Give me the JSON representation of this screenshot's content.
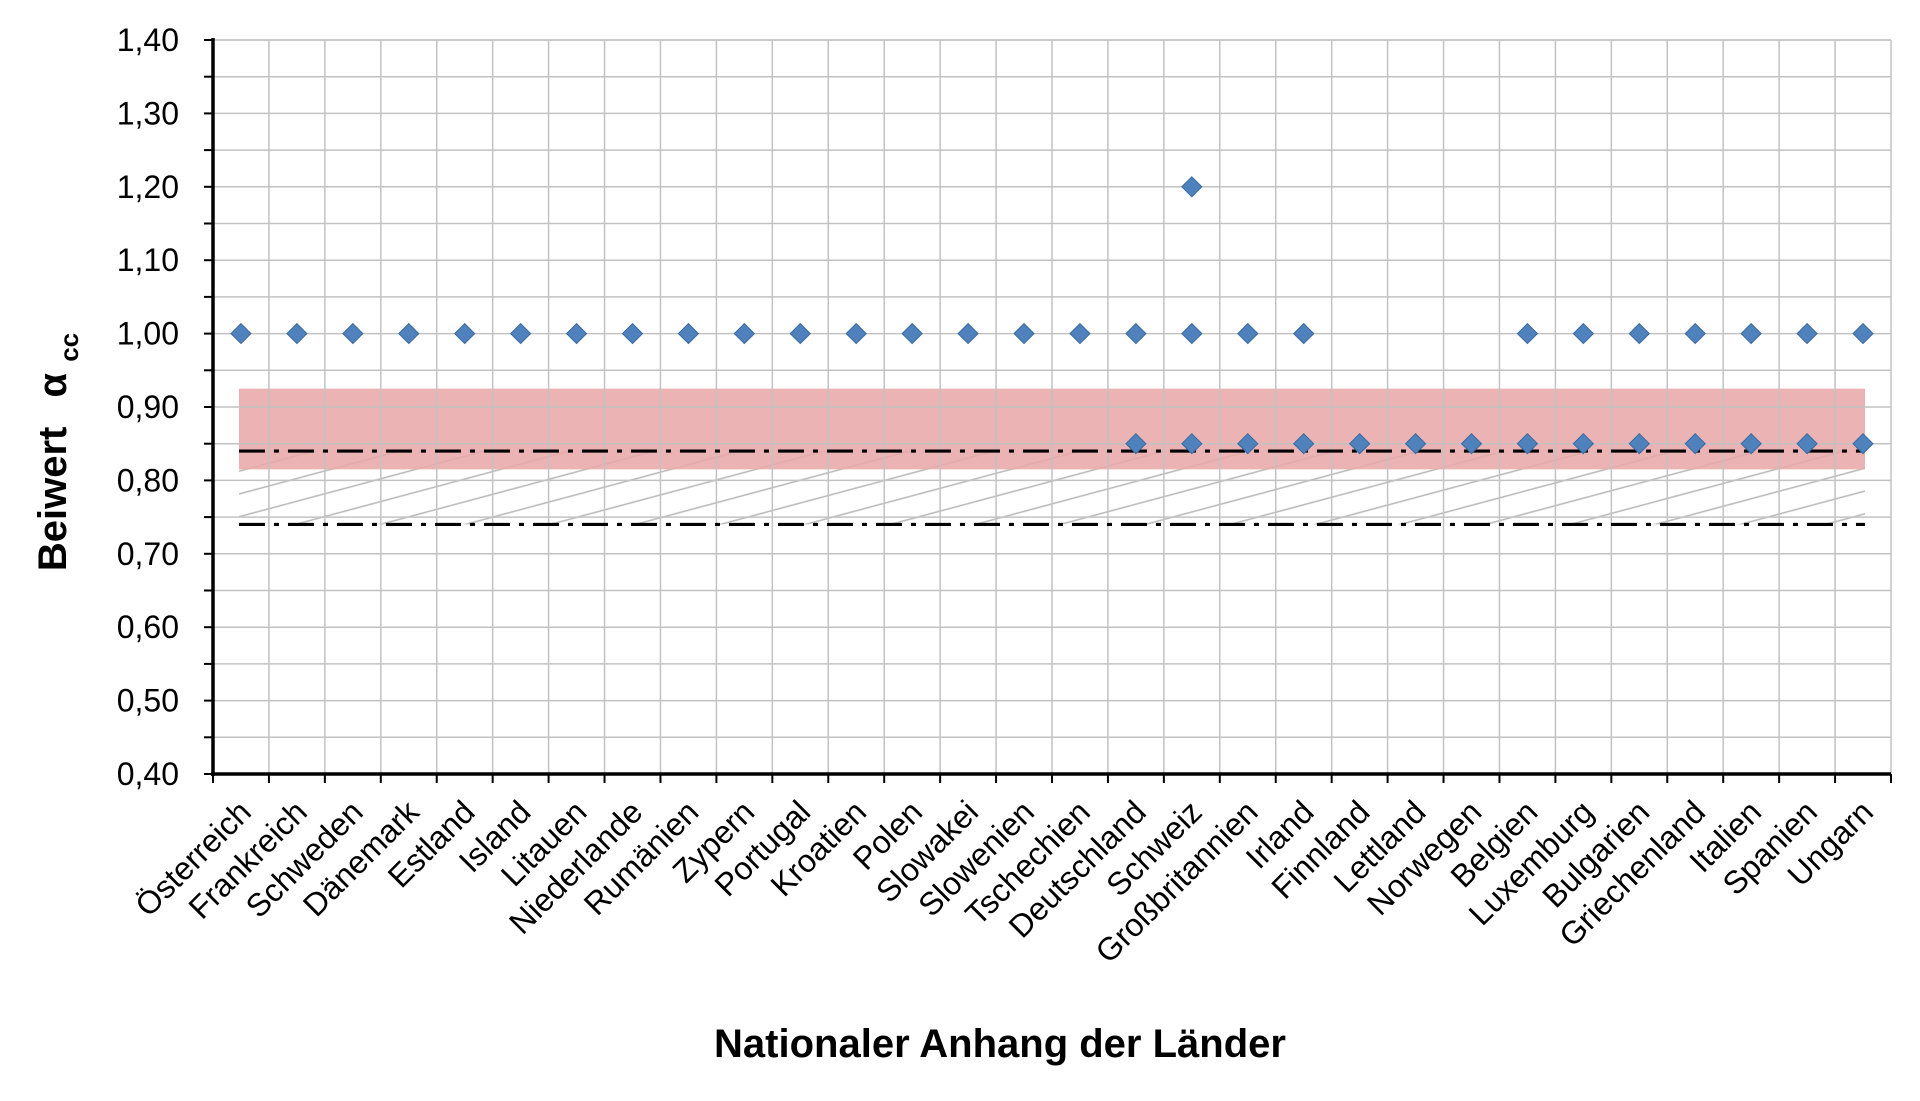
{
  "chart_data": {
    "type": "scatter",
    "title": "",
    "xlabel": "Nationaler Anhang der Länder",
    "ylabel": "Beiwert",
    "ylabel_symbol": "α",
    "ylabel_subscript": "cc",
    "ylim": [
      0.4,
      1.4
    ],
    "ytick_step": 0.1,
    "grid": true,
    "legend": "none",
    "categories": [
      "Österreich",
      "Frankreich",
      "Schweden",
      "Dänemark",
      "Estland",
      "Island",
      "Litauen",
      "Niederlande",
      "Rumänien",
      "Zypern",
      "Portugal",
      "Kroatien",
      "Polen",
      "Slowakei",
      "Slowenien",
      "Tschechien",
      "Deutschland",
      "Schweiz",
      "Großbritannien",
      "Irland",
      "Finnland",
      "Lettland",
      "Norwegen",
      "Belgien",
      "Luxemburg",
      "Bulgarien",
      "Griechenland",
      "Italien",
      "Spanien",
      "Ungarn"
    ],
    "points": [
      {
        "x": "Österreich",
        "y": 1.0
      },
      {
        "x": "Frankreich",
        "y": 1.0
      },
      {
        "x": "Schweden",
        "y": 1.0
      },
      {
        "x": "Dänemark",
        "y": 1.0
      },
      {
        "x": "Estland",
        "y": 1.0
      },
      {
        "x": "Island",
        "y": 1.0
      },
      {
        "x": "Litauen",
        "y": 1.0
      },
      {
        "x": "Niederlande",
        "y": 1.0
      },
      {
        "x": "Rumänien",
        "y": 1.0
      },
      {
        "x": "Zypern",
        "y": 1.0
      },
      {
        "x": "Portugal",
        "y": 1.0
      },
      {
        "x": "Kroatien",
        "y": 1.0
      },
      {
        "x": "Polen",
        "y": 1.0
      },
      {
        "x": "Slowakei",
        "y": 1.0
      },
      {
        "x": "Slowenien",
        "y": 1.0
      },
      {
        "x": "Tschechien",
        "y": 1.0
      },
      {
        "x": "Deutschland",
        "y": 1.0
      },
      {
        "x": "Deutschland",
        "y": 0.85
      },
      {
        "x": "Schweiz",
        "y": 1.2
      },
      {
        "x": "Schweiz",
        "y": 1.0
      },
      {
        "x": "Schweiz",
        "y": 0.85
      },
      {
        "x": "Großbritannien",
        "y": 1.0
      },
      {
        "x": "Großbritannien",
        "y": 0.85
      },
      {
        "x": "Irland",
        "y": 1.0
      },
      {
        "x": "Irland",
        "y": 0.85
      },
      {
        "x": "Finnland",
        "y": 0.85
      },
      {
        "x": "Lettland",
        "y": 0.85
      },
      {
        "x": "Norwegen",
        "y": 0.85
      },
      {
        "x": "Belgien",
        "y": 1.0
      },
      {
        "x": "Belgien",
        "y": 0.85
      },
      {
        "x": "Luxemburg",
        "y": 1.0
      },
      {
        "x": "Luxemburg",
        "y": 0.85
      },
      {
        "x": "Bulgarien",
        "y": 1.0
      },
      {
        "x": "Bulgarien",
        "y": 0.85
      },
      {
        "x": "Griechenland",
        "y": 1.0
      },
      {
        "x": "Griechenland",
        "y": 0.85
      },
      {
        "x": "Italien",
        "y": 1.0
      },
      {
        "x": "Italien",
        "y": 0.85
      },
      {
        "x": "Spanien",
        "y": 1.0
      },
      {
        "x": "Spanien",
        "y": 0.85
      },
      {
        "x": "Ungarn",
        "y": 1.0
      },
      {
        "x": "Ungarn",
        "y": 0.85
      }
    ],
    "band": {
      "ymin": 0.815,
      "ymax": 0.925,
      "color": "#e8a8aa"
    },
    "hatch_band": {
      "ymin": 0.74,
      "ymax": 0.84
    },
    "reference_lines": [
      0.84,
      0.74
    ],
    "marker_color": "#4f81bd"
  }
}
